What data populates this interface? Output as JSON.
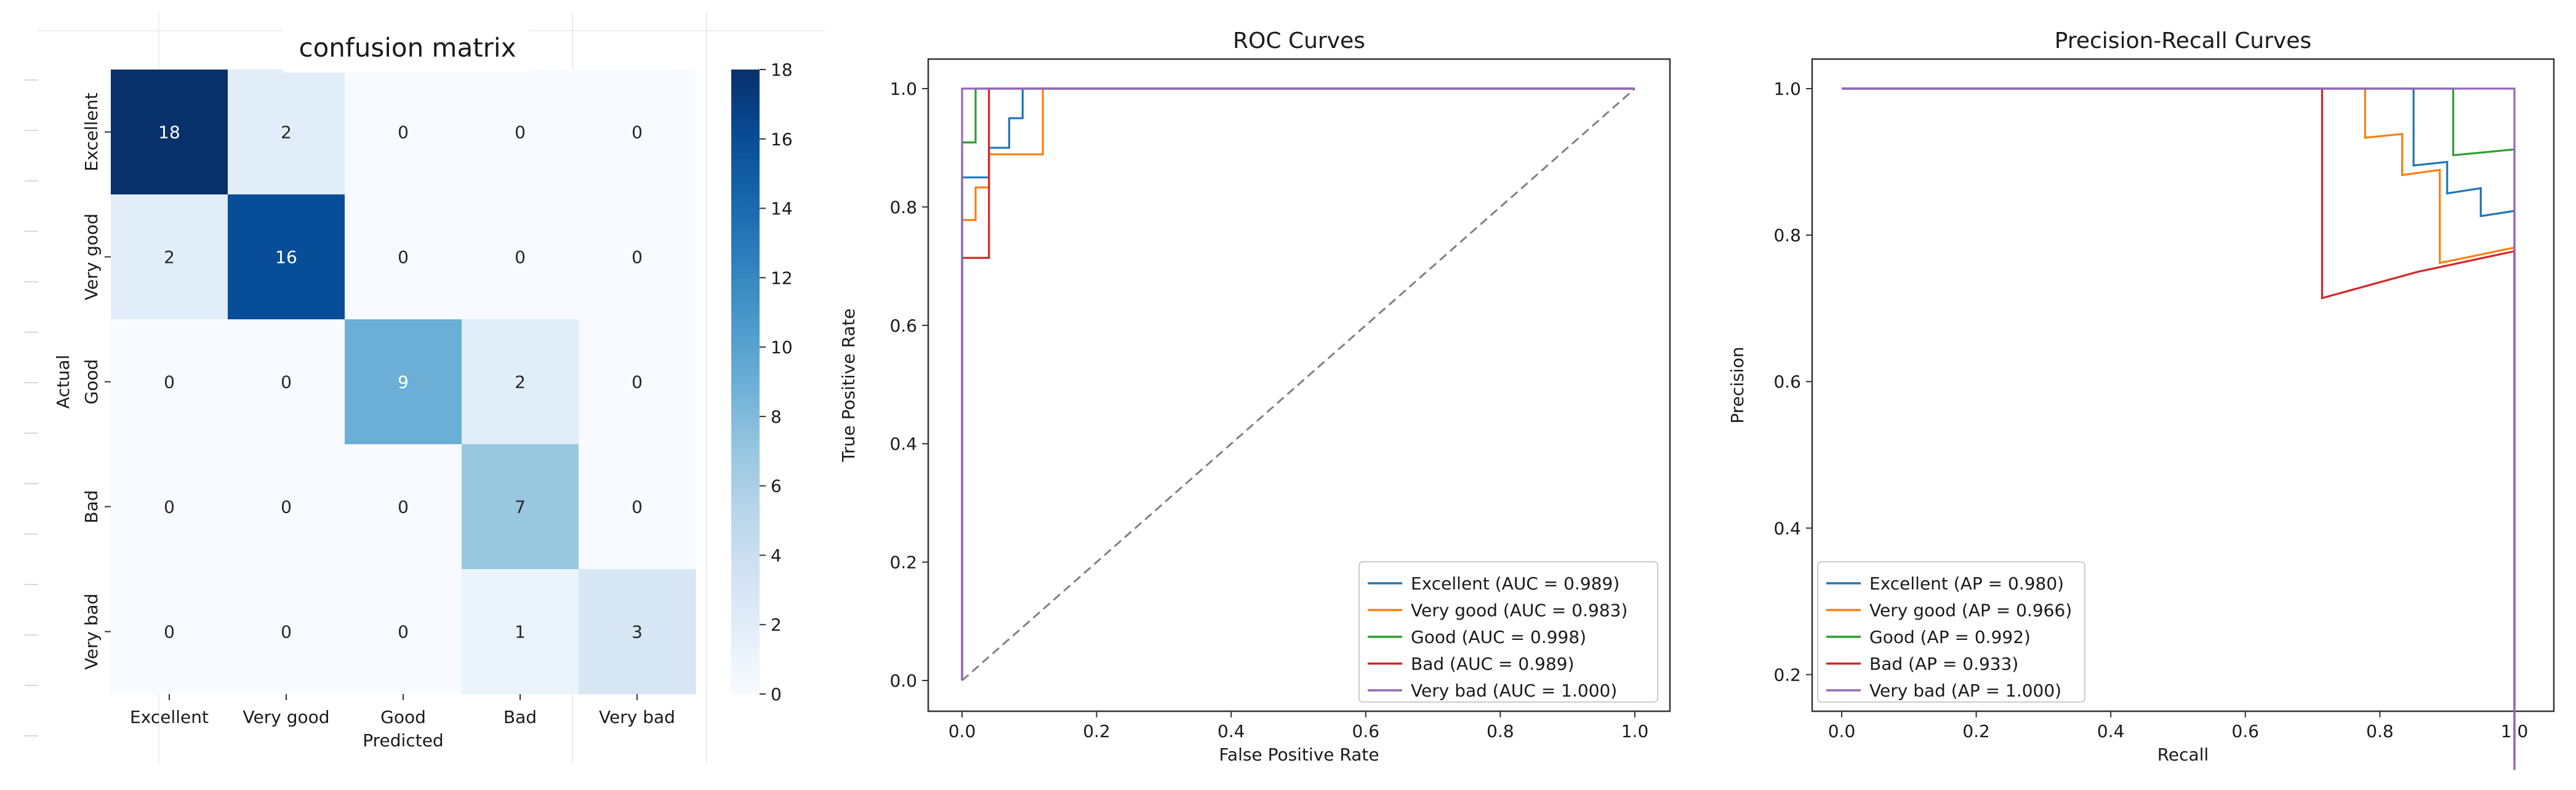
{
  "chart_data": [
    {
      "type": "heatmap",
      "title": "confusion matrix",
      "xlabel": "Predicted",
      "ylabel": "Actual",
      "row_labels": [
        "Excellent",
        "Very good",
        "Good",
        "Bad",
        "Very bad"
      ],
      "col_labels": [
        "Excellent",
        "Very good",
        "Good",
        "Bad",
        "Very bad"
      ],
      "matrix": [
        [
          18,
          2,
          0,
          0,
          0
        ],
        [
          2,
          16,
          0,
          0,
          0
        ],
        [
          0,
          0,
          9,
          2,
          0
        ],
        [
          0,
          0,
          0,
          7,
          0
        ],
        [
          0,
          0,
          0,
          1,
          3
        ]
      ],
      "colorbar": {
        "min": 0,
        "max": 18,
        "ticks": [
          "0",
          "2",
          "4",
          "6",
          "8",
          "10",
          "12",
          "14",
          "16",
          "18"
        ]
      }
    },
    {
      "type": "line",
      "title": "ROC Curves",
      "xlabel": "False Positive Rate",
      "ylabel": "True Positive Rate",
      "xlim": [
        0,
        1
      ],
      "ylim": [
        0,
        1
      ],
      "xticks": [
        "0.0",
        "0.2",
        "0.4",
        "0.6",
        "0.8",
        "1.0"
      ],
      "yticks": [
        "0.0",
        "0.2",
        "0.4",
        "0.6",
        "0.8",
        "1.0"
      ],
      "legend_position": "lower-right",
      "series": [
        {
          "name": "Excellent (AUC = 0.989)",
          "color": "#1f77b4",
          "points": [
            [
              0,
              0
            ],
            [
              0,
              0.85
            ],
            [
              0.04,
              0.85
            ],
            [
              0.04,
              0.9
            ],
            [
              0.07,
              0.9
            ],
            [
              0.07,
              0.95
            ],
            [
              0.09,
              0.95
            ],
            [
              0.09,
              1.0
            ],
            [
              1,
              1
            ]
          ]
        },
        {
          "name": "Very good (AUC = 0.983)",
          "color": "#ff7f0e",
          "points": [
            [
              0,
              0
            ],
            [
              0,
              0.778
            ],
            [
              0.02,
              0.778
            ],
            [
              0.02,
              0.833
            ],
            [
              0.04,
              0.833
            ],
            [
              0.04,
              0.889
            ],
            [
              0.12,
              0.889
            ],
            [
              0.12,
              1.0
            ],
            [
              1,
              1
            ]
          ]
        },
        {
          "name": "Good (AUC = 0.998)",
          "color": "#2ca02c",
          "points": [
            [
              0,
              0
            ],
            [
              0,
              0.909
            ],
            [
              0.02,
              0.909
            ],
            [
              0.02,
              1.0
            ],
            [
              1,
              1
            ]
          ]
        },
        {
          "name": "Bad (AUC = 0.989)",
          "color": "#d62728",
          "points": [
            [
              0,
              0
            ],
            [
              0,
              0.714
            ],
            [
              0.04,
              0.714
            ],
            [
              0.04,
              1.0
            ],
            [
              1,
              1
            ]
          ]
        },
        {
          "name": "Very bad (AUC = 1.000)",
          "color": "#9467bd",
          "points": [
            [
              0,
              0
            ],
            [
              0,
              1.0
            ],
            [
              1,
              1
            ]
          ]
        }
      ],
      "reference_line": {
        "color": "#808080",
        "points": [
          [
            0,
            0
          ],
          [
            1,
            1
          ]
        ]
      }
    },
    {
      "type": "line",
      "title": "Precision-Recall Curves",
      "xlabel": "Recall",
      "ylabel": "Precision",
      "xlim": [
        0,
        1
      ],
      "ylim": [
        0.15,
        1
      ],
      "xticks": [
        "0.0",
        "0.2",
        "0.4",
        "0.6",
        "0.8",
        "1.0"
      ],
      "yticks": [
        "0.2",
        "0.4",
        "0.6",
        "0.8",
        "1.0"
      ],
      "legend_position": "lower-left",
      "series": [
        {
          "name": "Excellent (AP = 0.980)",
          "color": "#1f77b4",
          "points": [
            [
              0,
              1
            ],
            [
              0.85,
              1
            ],
            [
              0.85,
              0.895
            ],
            [
              0.9,
              0.9
            ],
            [
              0.9,
              0.857
            ],
            [
              0.95,
              0.864
            ],
            [
              0.95,
              0.826
            ],
            [
              1,
              0.833
            ],
            [
              1,
              0.11
            ]
          ]
        },
        {
          "name": "Very good (AP = 0.966)",
          "color": "#ff7f0e",
          "points": [
            [
              0,
              1
            ],
            [
              0.778,
              1
            ],
            [
              0.778,
              0.933
            ],
            [
              0.833,
              0.938
            ],
            [
              0.833,
              0.882
            ],
            [
              0.889,
              0.889
            ],
            [
              0.889,
              0.762
            ],
            [
              1,
              0.783
            ],
            [
              1,
              0.08
            ]
          ]
        },
        {
          "name": "Good (AP = 0.992)",
          "color": "#2ca02c",
          "points": [
            [
              0,
              1
            ],
            [
              0.909,
              1
            ],
            [
              0.909,
              0.909
            ],
            [
              1,
              0.917
            ],
            [
              1,
              0.08
            ]
          ]
        },
        {
          "name": "Bad (AP = 0.933)",
          "color": "#d62728",
          "points": [
            [
              0,
              1
            ],
            [
              0.714,
              1
            ],
            [
              0.714,
              0.714
            ],
            [
              0.857,
              0.75
            ],
            [
              1,
              0.778
            ],
            [
              1,
              0.07
            ]
          ]
        },
        {
          "name": "Very bad (AP = 1.000)",
          "color": "#9467bd",
          "points": [
            [
              0,
              1
            ],
            [
              1,
              1
            ],
            [
              1,
              0.07
            ]
          ]
        }
      ]
    }
  ]
}
